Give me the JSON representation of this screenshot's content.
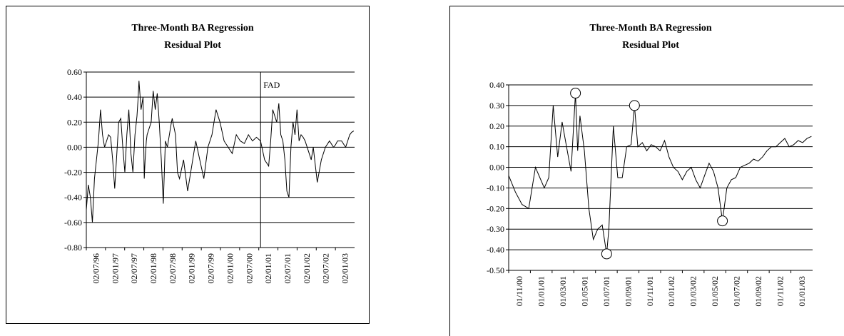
{
  "chart_data": [
    {
      "type": "line",
      "title": "Three-Month BA Regression",
      "subtitle": "Residual Plot",
      "xlabel": "",
      "ylabel": "",
      "ylim": [
        -0.8,
        0.6
      ],
      "yticks": [
        "0.60",
        "0.40",
        "0.20",
        "0.00",
        "-0.20",
        "-0.40",
        "-0.60",
        "-0.80"
      ],
      "ytick_values": [
        0.6,
        0.4,
        0.2,
        0.0,
        -0.2,
        -0.4,
        -0.6,
        -0.8
      ],
      "xticks": [
        "02/07/96",
        "02/01/97",
        "02/07/97",
        "02/01/98",
        "02/07/98",
        "02/01/99",
        "02/07/99",
        "02/01/00",
        "02/07/00",
        "02/01/01",
        "02/07/01",
        "02/01/02",
        "02/07/02",
        "02/01/03"
      ],
      "xlim": [
        1996.5,
        2003.12
      ],
      "grid": "horizontal",
      "annotation": {
        "text": "FAD",
        "x": 2000.8
      },
      "series": [
        {
          "x": [
            1996.5,
            1996.55,
            1996.6,
            1996.65,
            1996.7,
            1996.75,
            1996.8,
            1996.85,
            1996.9,
            1996.95,
            1997.0,
            1997.05,
            1997.1,
            1997.15,
            1997.2,
            1997.3,
            1997.35,
            1997.4,
            1997.45,
            1997.5,
            1997.55,
            1997.6,
            1997.65,
            1997.7,
            1997.75,
            1997.78,
            1997.8,
            1997.85,
            1997.9,
            1997.93,
            1997.95,
            1997.98,
            1998.0,
            1998.05,
            1998.1,
            1998.15,
            1998.2,
            1998.25,
            1998.3,
            1998.35,
            1998.4,
            1998.45,
            1998.5,
            1998.55,
            1998.6,
            1998.62,
            1998.65,
            1998.7,
            1998.75,
            1998.8,
            1998.9,
            1999.0,
            1999.1,
            1999.2,
            1999.3,
            1999.4,
            1999.5,
            1999.6,
            1999.7,
            1999.8,
            1999.9,
            2000.0,
            2000.1,
            2000.2,
            2000.3,
            2000.4,
            2000.5,
            2000.6,
            2000.7,
            2000.8,
            2000.9,
            2001.0,
            2001.05,
            2001.1,
            2001.2,
            2001.25,
            2001.3,
            2001.35,
            2001.4,
            2001.45,
            2001.5,
            2001.55,
            2001.6,
            2001.65,
            2001.7,
            2001.75,
            2001.8,
            2001.85,
            2001.9,
            2002.0,
            2002.05,
            2002.1,
            2002.2,
            2002.3,
            2002.4,
            2002.5,
            2002.6,
            2002.65,
            2002.7,
            2002.8,
            2002.9,
            2003.0,
            2003.05,
            2003.1
          ],
          "y": [
            -0.5,
            -0.3,
            -0.4,
            -0.6,
            -0.25,
            -0.1,
            0.05,
            0.3,
            0.1,
            0.0,
            0.05,
            0.1,
            0.08,
            -0.1,
            -0.33,
            0.2,
            0.23,
            0.0,
            -0.2,
            0.1,
            0.3,
            -0.05,
            -0.2,
            0.1,
            0.25,
            0.4,
            0.53,
            0.3,
            0.4,
            -0.25,
            -0.1,
            0.05,
            0.1,
            0.15,
            0.2,
            0.45,
            0.3,
            0.43,
            0.2,
            -0.1,
            -0.45,
            0.05,
            0.0,
            0.1,
            0.2,
            0.23,
            0.18,
            0.1,
            -0.2,
            -0.25,
            -0.1,
            -0.35,
            -0.15,
            0.05,
            -0.1,
            -0.25,
            0.0,
            0.1,
            0.3,
            0.2,
            0.05,
            0.0,
            -0.05,
            0.1,
            0.05,
            0.03,
            0.1,
            0.05,
            0.08,
            0.05,
            -0.1,
            -0.15,
            0.05,
            0.3,
            0.2,
            0.35,
            0.1,
            0.05,
            -0.1,
            -0.35,
            -0.4,
            0.0,
            0.2,
            0.1,
            0.3,
            0.05,
            0.1,
            0.08,
            0.05,
            -0.05,
            -0.1,
            0.0,
            -0.28,
            -0.1,
            0.0,
            0.05,
            0.0,
            0.02,
            0.05,
            0.05,
            0.0,
            0.1,
            0.12,
            0.13
          ]
        }
      ]
    },
    {
      "type": "line",
      "title": "Three-Month BA Regression",
      "subtitle": "Residual Plot",
      "xlabel": "",
      "ylabel": "",
      "ylim": [
        -0.5,
        0.4
      ],
      "yticks": [
        "0.40",
        "0.30",
        "0.20",
        "0.10",
        "0.00",
        "-0.10",
        "-0.20",
        "-0.30",
        "-0.40",
        "-0.50"
      ],
      "ytick_values": [
        0.4,
        0.3,
        0.2,
        0.1,
        0.0,
        -0.1,
        -0.2,
        -0.3,
        -0.4,
        -0.5
      ],
      "xticks": [
        "01/11/00",
        "01/01/01",
        "01/03/01",
        "01/05/01",
        "01/07/01",
        "01/09/01",
        "01/11/01",
        "01/01/02",
        "01/03/02",
        "01/05/02",
        "01/07/02",
        "01/09/02",
        "01/11/02",
        "01/01/03"
      ],
      "xlim": [
        0,
        27.3
      ],
      "grid": "horizontal",
      "series": [
        {
          "x": [
            0,
            0.6,
            1.2,
            1.8,
            2.4,
            2.8,
            3.2,
            3.6,
            4.0,
            4.4,
            4.8,
            5.2,
            5.6,
            6.0,
            6.2,
            6.4,
            6.8,
            7.2,
            7.6,
            8.0,
            8.4,
            8.8,
            9.0,
            9.4,
            9.8,
            10.2,
            10.6,
            11.0,
            11.3,
            11.6,
            12.0,
            12.4,
            12.8,
            13.2,
            13.6,
            14.0,
            14.4,
            14.8,
            15.2,
            15.6,
            16.0,
            16.4,
            16.8,
            17.2,
            17.6,
            18.0,
            18.4,
            18.8,
            19.2,
            19.6,
            20.0,
            20.4,
            20.8,
            21.2,
            21.6,
            22.0,
            22.4,
            22.8,
            23.2,
            23.6,
            24.0,
            24.4,
            24.8,
            25.2,
            25.6,
            26.0,
            26.4,
            26.8,
            27.2
          ],
          "y": [
            -0.04,
            -0.12,
            -0.18,
            -0.2,
            0.0,
            -0.05,
            -0.1,
            -0.05,
            0.3,
            0.05,
            0.22,
            0.1,
            -0.02,
            0.36,
            0.08,
            0.25,
            0.08,
            -0.2,
            -0.35,
            -0.3,
            -0.28,
            -0.42,
            -0.3,
            0.2,
            -0.05,
            -0.05,
            0.1,
            0.11,
            0.3,
            0.1,
            0.12,
            0.08,
            0.11,
            0.1,
            0.08,
            0.13,
            0.05,
            0.0,
            -0.02,
            -0.06,
            -0.02,
            0.0,
            -0.06,
            -0.1,
            -0.04,
            0.02,
            -0.02,
            -0.1,
            -0.26,
            -0.1,
            -0.06,
            -0.05,
            0.0,
            0.01,
            0.02,
            0.04,
            0.03,
            0.05,
            0.08,
            0.1,
            0.1,
            0.12,
            0.14,
            0.1,
            0.11,
            0.13,
            0.12,
            0.14,
            0.15
          ]
        }
      ],
      "markers": [
        {
          "x": 6.0,
          "y": 0.36
        },
        {
          "x": 8.8,
          "y": -0.42
        },
        {
          "x": 11.3,
          "y": 0.3
        },
        {
          "x": 19.2,
          "y": -0.26
        }
      ]
    }
  ]
}
